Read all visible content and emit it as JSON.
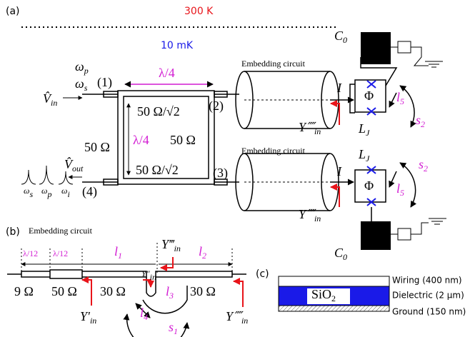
{
  "panel_a": {
    "label": "(a)",
    "temp_room": "300 K",
    "temp_base": "10 mK",
    "omega_p": {
      "symbol": "ω",
      "sub": "p"
    },
    "omega_s": {
      "symbol": "ω",
      "sub": "s"
    },
    "port_1": "(1)",
    "port_2": "(2)",
    "port_3": "(3)",
    "port_4": "(4)",
    "v_in": {
      "symbol": "V̂",
      "sub": "in"
    },
    "v_out": {
      "symbol": "V̂",
      "sub": "out"
    },
    "length_top": "λ/4",
    "length_side": "λ/4",
    "z_top": "50 Ω/√2",
    "z_bottom": "50 Ω/√2",
    "z_right": "50 Ω",
    "z_left": "50 Ω",
    "spectrum": [
      {
        "symbol": "ω",
        "sub": "s"
      },
      {
        "symbol": "ω",
        "sub": "p"
      },
      {
        "symbol": "ω",
        "sub": "i"
      }
    ],
    "branches": [
      {
        "title": "Embedding circuit",
        "current": "I",
        "flux": "Φ",
        "admittance": {
          "symbol": "Y⁗",
          "sub": "in"
        },
        "inductance": {
          "symbol": "L",
          "sub": "J"
        },
        "capacitance": {
          "symbol": "C",
          "sub": "0"
        },
        "length": {
          "symbol": "l",
          "sub": "5"
        },
        "arc": {
          "symbol": "s",
          "sub": "2"
        }
      },
      {
        "title": "Embedding circuit",
        "current": "I",
        "flux": "Φ",
        "admittance": {
          "symbol": "Y⁗",
          "sub": "in"
        },
        "inductance": {
          "symbol": "L",
          "sub": "J"
        },
        "capacitance": {
          "symbol": "C",
          "sub": "0"
        },
        "length": {
          "symbol": "l",
          "sub": "5"
        },
        "arc": {
          "symbol": "s",
          "sub": "2"
        }
      }
    ]
  },
  "panel_b": {
    "label": "(b)",
    "title": "Embedding circuit",
    "seg_1_length": "λ/12",
    "seg_2_length": "λ/12",
    "l_1": {
      "symbol": "l",
      "sub": "1"
    },
    "l_2": {
      "symbol": "l",
      "sub": "2"
    },
    "l_3": {
      "symbol": "l",
      "sub": "3"
    },
    "l_4": {
      "symbol": "l",
      "sub": "4"
    },
    "s_1": {
      "symbol": "s",
      "sub": "1"
    },
    "z_1": "9 Ω",
    "z_2": "50 Ω",
    "z_3": "30 Ω",
    "z_4": "30 Ω",
    "y_in_1": {
      "symbol": "Y′",
      "sub": "in"
    },
    "y_in_2": {
      "symbol": "Y″",
      "sub": "in"
    },
    "y_in_3": {
      "symbol": "Y‴",
      "sub": "in"
    },
    "y_in_4": {
      "symbol": "Y⁗",
      "sub": "in"
    }
  },
  "panel_c": {
    "label": "(c)",
    "material": {
      "symbol": "SiO",
      "sub": "2"
    },
    "layers": [
      "Wiring (400 nm)",
      "Dielectric (2 μm)",
      "Ground (150 nm)"
    ]
  }
}
